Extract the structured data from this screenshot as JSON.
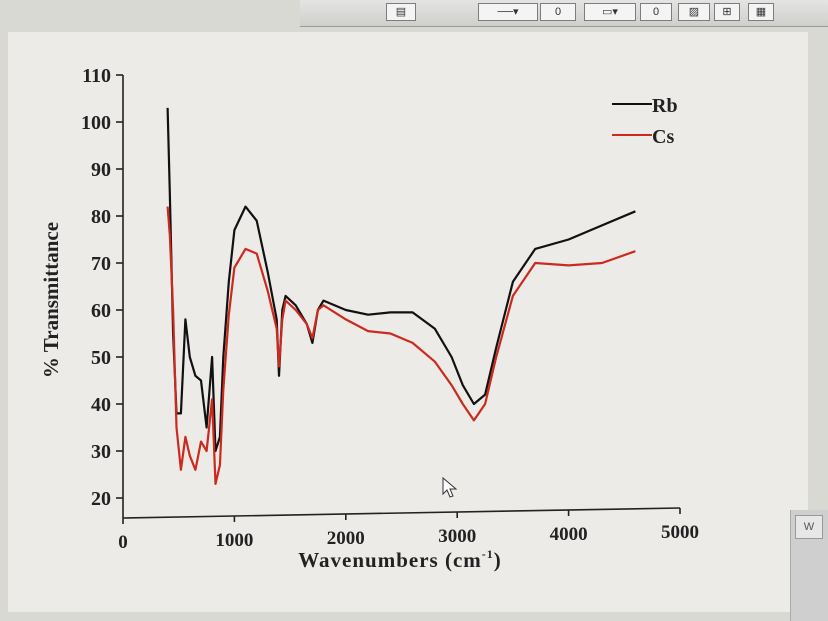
{
  "toolbar": {
    "line_weight_value": "0",
    "border_value": "0"
  },
  "side_tab_label": "W",
  "chart_data": {
    "type": "line",
    "xlabel": "Wavenumbers (cm",
    "xlabel_sup": "-1",
    "xlabel_close": ")",
    "ylabel": "% Transmittance",
    "xlim": [
      0,
      5000
    ],
    "ylim": [
      20,
      110
    ],
    "x_ticks": [
      0,
      1000,
      2000,
      3000,
      4000,
      5000
    ],
    "y_ticks": [
      20,
      30,
      40,
      50,
      60,
      70,
      80,
      90,
      100,
      110
    ],
    "legend_position": "top-right",
    "grid": false,
    "series": [
      {
        "name": "Rb",
        "color": "#111111",
        "points": [
          [
            400,
            103
          ],
          [
            420,
            85
          ],
          [
            450,
            55
          ],
          [
            480,
            38
          ],
          [
            520,
            38
          ],
          [
            560,
            58
          ],
          [
            600,
            50
          ],
          [
            650,
            46
          ],
          [
            700,
            45
          ],
          [
            750,
            35
          ],
          [
            800,
            50
          ],
          [
            830,
            30
          ],
          [
            870,
            33
          ],
          [
            900,
            50
          ],
          [
            950,
            66
          ],
          [
            1000,
            77
          ],
          [
            1100,
            82
          ],
          [
            1200,
            79
          ],
          [
            1300,
            68
          ],
          [
            1380,
            58
          ],
          [
            1400,
            46
          ],
          [
            1430,
            60
          ],
          [
            1460,
            63
          ],
          [
            1550,
            61
          ],
          [
            1650,
            57
          ],
          [
            1700,
            53
          ],
          [
            1750,
            60
          ],
          [
            1800,
            62
          ],
          [
            2000,
            60
          ],
          [
            2200,
            59
          ],
          [
            2400,
            59.5
          ],
          [
            2600,
            59.5
          ],
          [
            2800,
            56
          ],
          [
            2950,
            50
          ],
          [
            3050,
            44
          ],
          [
            3150,
            40
          ],
          [
            3250,
            42
          ],
          [
            3350,
            52
          ],
          [
            3500,
            66
          ],
          [
            3700,
            73
          ],
          [
            4000,
            75
          ],
          [
            4300,
            78
          ],
          [
            4600,
            81
          ]
        ]
      },
      {
        "name": "Cs",
        "color": "#cc2a1e",
        "points": [
          [
            400,
            82
          ],
          [
            420,
            76
          ],
          [
            450,
            60
          ],
          [
            480,
            35
          ],
          [
            520,
            26
          ],
          [
            560,
            33
          ],
          [
            600,
            29
          ],
          [
            650,
            26
          ],
          [
            700,
            32
          ],
          [
            750,
            30
          ],
          [
            800,
            41
          ],
          [
            830,
            23
          ],
          [
            870,
            27
          ],
          [
            900,
            43
          ],
          [
            950,
            59
          ],
          [
            1000,
            69
          ],
          [
            1100,
            73
          ],
          [
            1200,
            72
          ],
          [
            1300,
            64
          ],
          [
            1380,
            56
          ],
          [
            1400,
            48
          ],
          [
            1430,
            58
          ],
          [
            1460,
            62
          ],
          [
            1550,
            60
          ],
          [
            1650,
            57
          ],
          [
            1700,
            54
          ],
          [
            1750,
            60
          ],
          [
            1800,
            61
          ],
          [
            2000,
            58
          ],
          [
            2200,
            55.5
          ],
          [
            2400,
            55
          ],
          [
            2600,
            53
          ],
          [
            2800,
            49
          ],
          [
            2950,
            44
          ],
          [
            3050,
            40
          ],
          [
            3150,
            36.5
          ],
          [
            3250,
            40
          ],
          [
            3350,
            50
          ],
          [
            3500,
            63
          ],
          [
            3700,
            70
          ],
          [
            4000,
            69.5
          ],
          [
            4300,
            70
          ],
          [
            4600,
            72.5
          ]
        ]
      }
    ]
  }
}
